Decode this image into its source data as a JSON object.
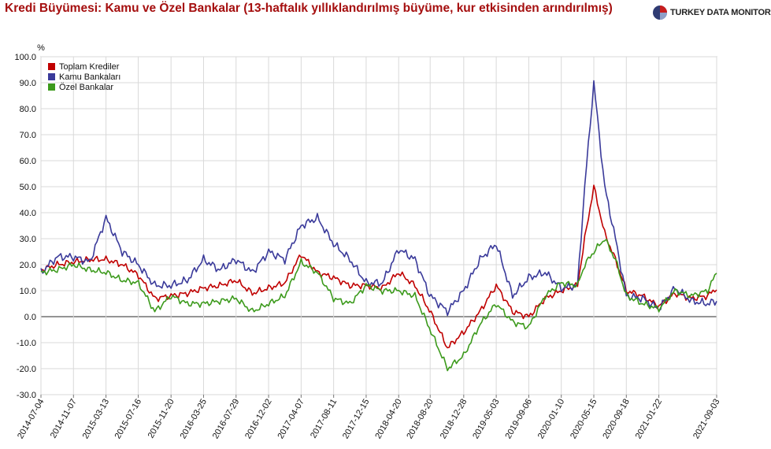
{
  "title": "Kredi Büyümesi: Kamu ve Özel Bankalar (13-haftalık yıllıklandırılmış büyüme, kur etkisinden arındırılmış)",
  "brand": {
    "name": "TURKEY DATA MONITOR",
    "icon": "pie-logo-icon"
  },
  "colors": {
    "title": "#a50f0f",
    "toplam": "#c00000",
    "kamu": "#3a3a9a",
    "ozel": "#3c9a1c",
    "zero": "#555555",
    "grid": "#d9d9d9"
  },
  "chart_data": {
    "type": "line",
    "ylabel": "%",
    "ylim": [
      -30,
      100
    ],
    "yticks": [
      "100.0",
      "90.0",
      "80.0",
      "70.0",
      "60.0",
      "50.0",
      "40.0",
      "30.0",
      "20.0",
      "10.0",
      "0.0",
      "-10.0",
      "-20.0",
      "-30.0"
    ],
    "xlim": [
      "2014-07-04",
      "2021-09-03"
    ],
    "xticks": [
      "2014-07-04",
      "2014-11-07",
      "2015-03-13",
      "2015-07-16",
      "2015-11-20",
      "2016-03-25",
      "2016-07-29",
      "2016-12-02",
      "2017-04-07",
      "2017-08-11",
      "2017-12-15",
      "2018-04-20",
      "2018-08-20",
      "2018-12-28",
      "2019-05-03",
      "2019-09-06",
      "2020-01-10",
      "2020-05-15",
      "2020-09-18",
      "2021-01-22",
      "2021-09-03"
    ],
    "grid": true,
    "legend": "top-left",
    "series": [
      {
        "name": "Toplam Krediler",
        "color": "#c00000",
        "x": [
          "2014-07-04",
          "2014-09-05",
          "2014-11-07",
          "2015-01-09",
          "2015-03-13",
          "2015-05-15",
          "2015-07-16",
          "2015-09-18",
          "2015-11-20",
          "2016-01-22",
          "2016-03-25",
          "2016-05-27",
          "2016-07-29",
          "2016-09-30",
          "2016-12-02",
          "2017-02-03",
          "2017-04-07",
          "2017-06-09",
          "2017-08-11",
          "2017-10-13",
          "2017-12-15",
          "2018-02-16",
          "2018-04-20",
          "2018-06-22",
          "2018-08-20",
          "2018-10-26",
          "2018-12-28",
          "2019-03-01",
          "2019-05-03",
          "2019-07-05",
          "2019-09-06",
          "2019-11-08",
          "2020-01-10",
          "2020-03-13",
          "2020-04-10",
          "2020-05-15",
          "2020-06-26",
          "2020-08-07",
          "2020-09-18",
          "2020-11-20",
          "2021-01-22",
          "2021-03-26",
          "2021-05-28",
          "2021-07-30",
          "2021-09-03"
        ],
        "values": [
          18,
          20,
          21,
          22,
          22,
          20,
          16,
          7,
          8,
          9,
          11,
          12,
          14,
          9,
          11,
          13,
          24,
          17,
          15,
          12,
          12,
          11,
          17,
          12,
          2,
          -12,
          -6,
          2,
          12,
          2,
          0,
          7,
          10,
          12,
          30,
          50,
          32,
          22,
          10,
          8,
          4,
          9,
          7,
          8,
          11
        ]
      },
      {
        "name": "Kamu Bankaları",
        "color": "#3a3a9a",
        "x": [
          "2014-07-04",
          "2014-09-05",
          "2014-11-07",
          "2015-01-09",
          "2015-03-13",
          "2015-05-15",
          "2015-07-16",
          "2015-09-18",
          "2015-11-20",
          "2016-01-22",
          "2016-03-25",
          "2016-05-27",
          "2016-07-29",
          "2016-09-30",
          "2016-12-02",
          "2017-02-03",
          "2017-04-07",
          "2017-06-09",
          "2017-08-11",
          "2017-10-13",
          "2017-12-15",
          "2018-02-16",
          "2018-04-20",
          "2018-06-22",
          "2018-08-20",
          "2018-10-26",
          "2018-12-28",
          "2019-03-01",
          "2019-05-03",
          "2019-07-05",
          "2019-09-06",
          "2019-11-08",
          "2020-01-10",
          "2020-03-13",
          "2020-04-10",
          "2020-05-15",
          "2020-06-26",
          "2020-08-07",
          "2020-09-18",
          "2020-11-20",
          "2021-01-22",
          "2021-03-26",
          "2021-05-28",
          "2021-07-30",
          "2021-09-03"
        ],
        "values": [
          17,
          23,
          23,
          21,
          38,
          25,
          20,
          12,
          12,
          14,
          22,
          18,
          22,
          17,
          25,
          22,
          35,
          38,
          28,
          22,
          13,
          13,
          26,
          22,
          8,
          2,
          10,
          22,
          28,
          8,
          15,
          17,
          11,
          12,
          50,
          90,
          50,
          30,
          8,
          7,
          3,
          11,
          6,
          5,
          6
        ]
      },
      {
        "name": "Özel Bankalar",
        "color": "#3c9a1c",
        "x": [
          "2014-07-04",
          "2014-09-05",
          "2014-11-07",
          "2015-01-09",
          "2015-03-13",
          "2015-05-15",
          "2015-07-16",
          "2015-09-18",
          "2015-11-20",
          "2016-01-22",
          "2016-03-25",
          "2016-05-27",
          "2016-07-29",
          "2016-09-30",
          "2016-12-02",
          "2017-02-03",
          "2017-04-07",
          "2017-06-09",
          "2017-08-11",
          "2017-10-13",
          "2017-12-15",
          "2018-02-16",
          "2018-04-20",
          "2018-06-22",
          "2018-08-20",
          "2018-10-26",
          "2018-12-28",
          "2019-03-01",
          "2019-05-03",
          "2019-07-05",
          "2019-09-06",
          "2019-11-08",
          "2020-01-10",
          "2020-03-13",
          "2020-04-10",
          "2020-05-15",
          "2020-06-26",
          "2020-08-07",
          "2020-09-18",
          "2020-11-20",
          "2021-01-22",
          "2021-03-26",
          "2021-05-28",
          "2021-07-30",
          "2021-09-03"
        ],
        "values": [
          17,
          18,
          20,
          18,
          17,
          14,
          13,
          2,
          8,
          5,
          5,
          6,
          7,
          2,
          5,
          8,
          21,
          17,
          7,
          5,
          12,
          10,
          10,
          8,
          -5,
          -20,
          -15,
          -3,
          5,
          -2,
          -4,
          8,
          13,
          12,
          20,
          25,
          30,
          22,
          8,
          5,
          3,
          10,
          8,
          10,
          17
        ]
      }
    ]
  }
}
